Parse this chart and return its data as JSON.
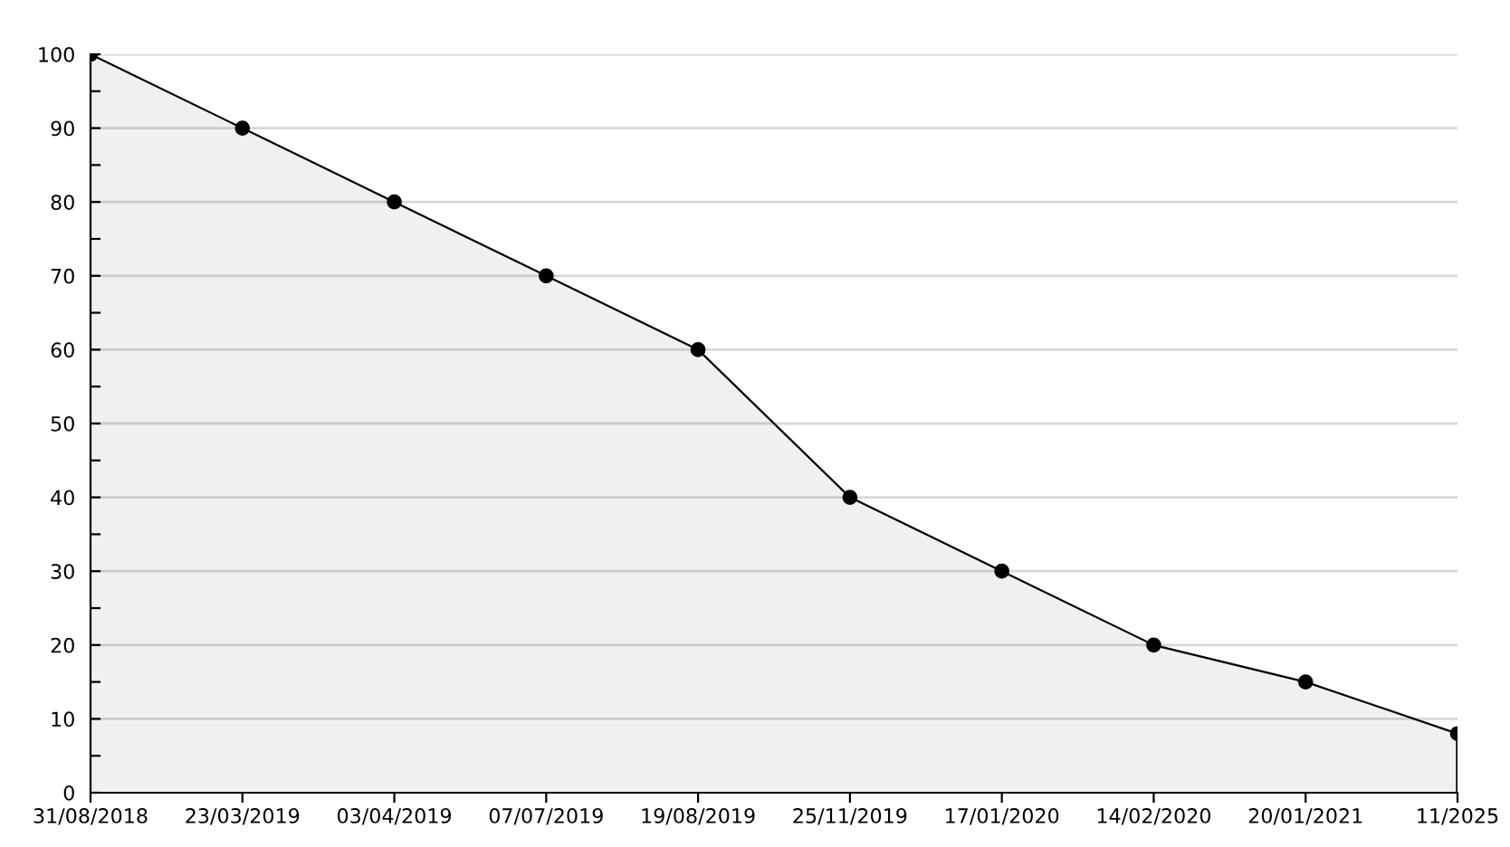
{
  "chart_data": {
    "type": "area",
    "categories": [
      "31/08/2018",
      "23/03/2019",
      "03/04/2019",
      "07/07/2019",
      "19/08/2019",
      "25/11/2019",
      "17/01/2020",
      "14/02/2020",
      "20/01/2021",
      "11/2025"
    ],
    "series": [
      {
        "color": "#000000",
        "values": [
          100,
          90,
          80,
          70,
          60,
          40,
          30,
          20,
          15,
          8
        ]
      }
    ],
    "ylim": [
      0,
      100
    ],
    "yticks": [
      0,
      {
        "value": 5,
        "label": null
      },
      10,
      {
        "value": 15,
        "label": null
      },
      20,
      {
        "value": 25,
        "label": null
      },
      30,
      {
        "value": 35,
        "label": null
      },
      40,
      {
        "value": 45,
        "label": null
      },
      50,
      {
        "value": 55,
        "label": null
      },
      60,
      {
        "value": 65,
        "label": null
      },
      70,
      {
        "value": 75,
        "label": null
      },
      80,
      {
        "value": 85,
        "label": null
      },
      90,
      {
        "value": 95,
        "label": null
      },
      100
    ],
    "grid": "y",
    "marker": "circle",
    "line_style": "solid",
    "legend": false
  }
}
